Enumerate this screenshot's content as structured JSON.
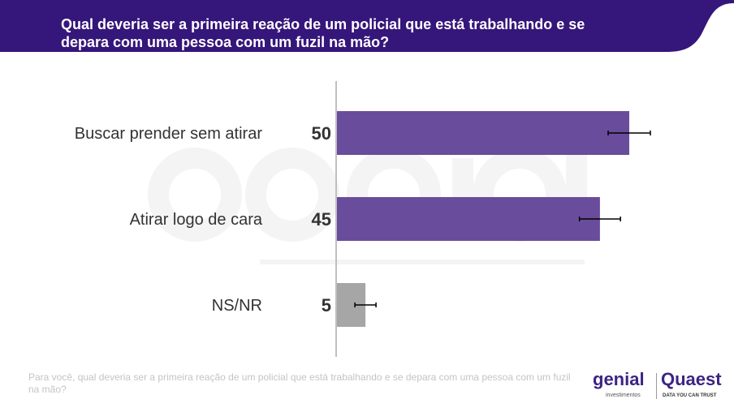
{
  "header": {
    "title": "Qual deveria ser a primeira reação de um policial que está trabalhando e se depara com uma pessoa com um fuzil na mão?"
  },
  "watermark": {
    "line1": "genial",
    "line2": "investimentos"
  },
  "footnote": "Para você, qual deveria ser a primeira reação de um policial que está trabalhando e se depara com uma pessoa com um fuzil na mão?",
  "logos": {
    "genial": "genial",
    "genial_sub": "investimentos",
    "quaest": "Quaest",
    "quaest_sub": "DATA YOU CAN TRUST"
  },
  "colors": {
    "header": "#35167a",
    "bar": "#6a4c9c",
    "bar_other": "#a6a6a6"
  },
  "chart_data": {
    "type": "bar",
    "orientation": "horizontal",
    "categories": [
      "Buscar prender sem atirar",
      "Atirar logo de cara",
      "NS/NR"
    ],
    "values": [
      50,
      45,
      5
    ],
    "error": [
      3.6,
      3.5,
      1.8
    ],
    "xlim": [
      0,
      60
    ],
    "grid": false
  }
}
